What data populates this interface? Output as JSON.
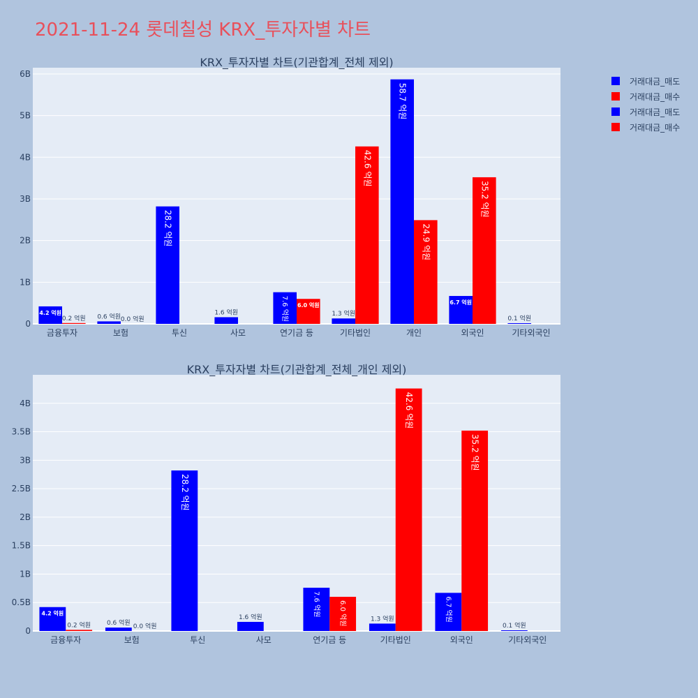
{
  "page_title": "2021-11-24 롯데칠성 KRX_투자자별 차트",
  "colors": {
    "sell": "#0000ff",
    "buy": "#ff0000",
    "plot_bg": "#e5ecf6",
    "page_bg": "#b0c4de",
    "title": "#e8505b"
  },
  "legend": [
    {
      "label": "거래대금_매도",
      "color": "#0000ff"
    },
    {
      "label": "거래대금_매수",
      "color": "#ff0000"
    },
    {
      "label": "거래대금_매도",
      "color": "#0000ff"
    },
    {
      "label": "거래대금_매수",
      "color": "#ff0000"
    }
  ],
  "chart_data": [
    {
      "type": "bar",
      "title": "KRX_투자자별 차트(기관합계_전체 제외)",
      "categories": [
        "금융투자",
        "보험",
        "투신",
        "사모",
        "연기금 등",
        "기타법인",
        "개인",
        "외국인",
        "기타외국인"
      ],
      "series": [
        {
          "name": "거래대금_매도",
          "values": [
            420000000,
            60000000,
            2820000000,
            160000000,
            760000000,
            130000000,
            5870000000,
            670000000,
            10000000
          ],
          "labels": [
            "4.2 억원",
            "0.6 억원",
            "28.2 억원",
            "1.6 억원",
            "7.6 억원",
            "1.3 억원",
            "58.7 억원",
            "6.7 억원",
            "0.1 억원"
          ]
        },
        {
          "name": "거래대금_매수",
          "values": [
            20000000,
            0,
            null,
            null,
            600000000,
            4260000000,
            2490000000,
            3520000000,
            null
          ],
          "labels": [
            "0.2 억원",
            "0.0 억원",
            "",
            "",
            "6.0 억원",
            "42.6 억원",
            "24.9 억원",
            "35.2 억원",
            ""
          ]
        }
      ],
      "yticks": [
        "0",
        "1B",
        "2B",
        "3B",
        "4B",
        "5B",
        "6B"
      ],
      "ytick_values": [
        0,
        1000000000,
        2000000000,
        3000000000,
        4000000000,
        5000000000,
        6000000000
      ],
      "ylim": [
        0,
        6150000000
      ]
    },
    {
      "type": "bar",
      "title": "KRX_투자자별 차트(기관합계_전체_개인 제외)",
      "categories": [
        "금융투자",
        "보험",
        "투신",
        "사모",
        "연기금 등",
        "기타법인",
        "외국인",
        "기타외국인"
      ],
      "series": [
        {
          "name": "거래대금_매도",
          "values": [
            420000000,
            60000000,
            2820000000,
            160000000,
            760000000,
            130000000,
            670000000,
            10000000
          ],
          "labels": [
            "4.2 억원",
            "0.6 억원",
            "28.2 억원",
            "1.6 억원",
            "7.6 억원",
            "1.3 억원",
            "6.7 억원",
            "0.1 억원"
          ]
        },
        {
          "name": "거래대금_매수",
          "values": [
            20000000,
            0,
            null,
            null,
            600000000,
            4260000000,
            3520000000,
            null
          ],
          "labels": [
            "0.2 억원",
            "0.0 억원",
            "",
            "",
            "6.0 억원",
            "42.6 억원",
            "35.2 억원",
            ""
          ]
        }
      ],
      "yticks": [
        "0",
        "0.5B",
        "1B",
        "1.5B",
        "2B",
        "2.5B",
        "3B",
        "3.5B",
        "4B"
      ],
      "ytick_values": [
        0,
        500000000,
        1000000000,
        1500000000,
        2000000000,
        2500000000,
        3000000000,
        3500000000,
        4000000000
      ],
      "ylim": [
        0,
        4500000000
      ]
    }
  ]
}
